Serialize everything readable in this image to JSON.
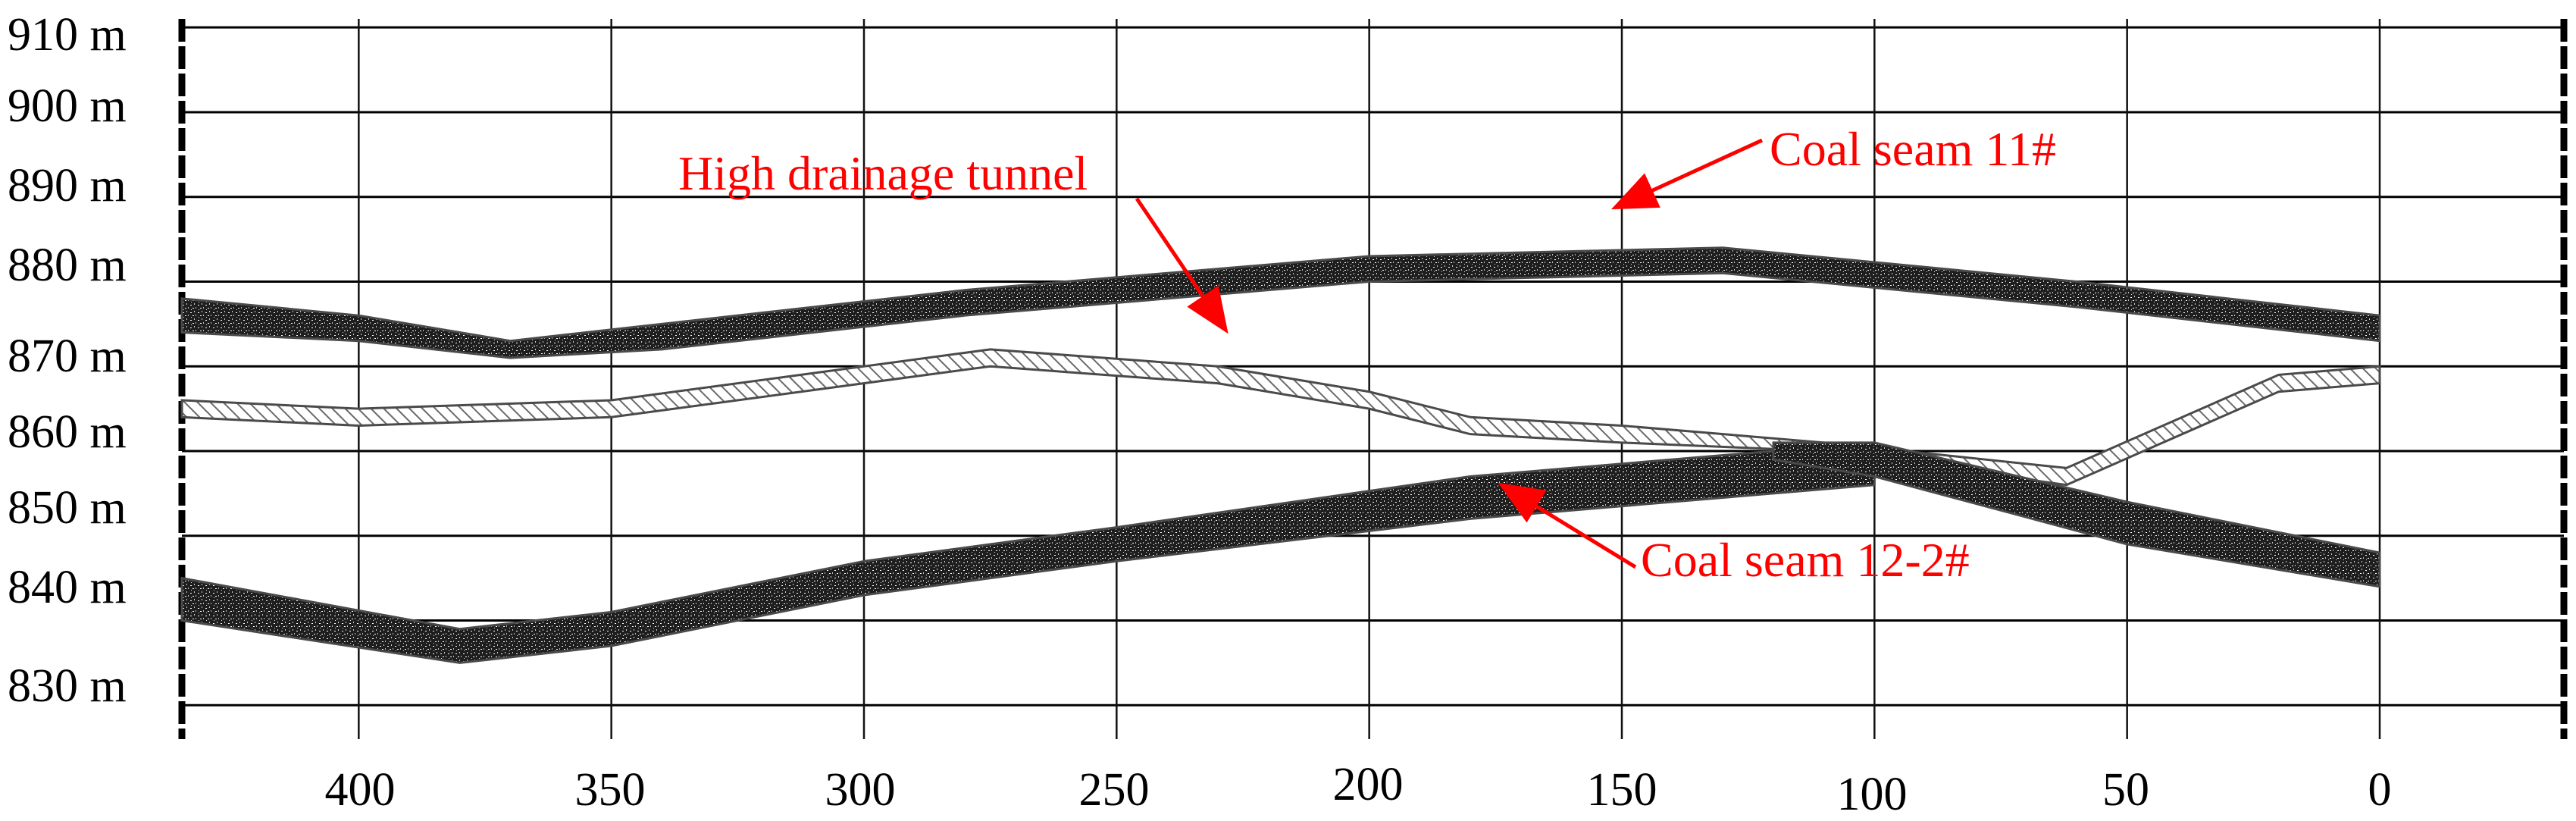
{
  "y_axis_labels": [
    "910 m",
    "900 m",
    "890 m",
    "880 m",
    "870 m",
    "860 m",
    "850 m",
    "840 m",
    "830 m"
  ],
  "x_axis_labels": [
    "400",
    "350",
    "300",
    "250",
    "200",
    "150",
    "100",
    "50",
    "0"
  ],
  "annotations": {
    "seam_11": "Coal seam 11#",
    "tunnel": "High drainage tunnel",
    "seam_12_2": "Coal seam 12-2#"
  },
  "colors": {
    "annotation": "#ff0000",
    "seam_fill": "#2a2a2a",
    "tunnel_fill": "#9a9a9a",
    "grid": "#000000"
  },
  "x_range": [
    435,
    0
  ],
  "y_range": [
    826,
    911
  ],
  "profiles": {
    "seam_11": {
      "top": [
        [
          435,
          878
        ],
        [
          400,
          876
        ],
        [
          370,
          873
        ],
        [
          340,
          875
        ],
        [
          280,
          879
        ],
        [
          200,
          883
        ],
        [
          130,
          884
        ],
        [
          60,
          880
        ],
        [
          0,
          876
        ]
      ],
      "bottom": [
        [
          435,
          874
        ],
        [
          400,
          873
        ],
        [
          370,
          871
        ],
        [
          340,
          872
        ],
        [
          280,
          876
        ],
        [
          200,
          880
        ],
        [
          130,
          881
        ],
        [
          60,
          877
        ],
        [
          0,
          873
        ]
      ]
    },
    "tunnel": {
      "top": [
        [
          435,
          866
        ],
        [
          400,
          865
        ],
        [
          350,
          866
        ],
        [
          275,
          872
        ],
        [
          230,
          870
        ],
        [
          200,
          867
        ],
        [
          180,
          864
        ],
        [
          150,
          863
        ],
        [
          110,
          861
        ],
        [
          62,
          858
        ],
        [
          20,
          869
        ],
        [
          0,
          870
        ]
      ],
      "bottom": [
        [
          435,
          864
        ],
        [
          400,
          863
        ],
        [
          350,
          864
        ],
        [
          275,
          870
        ],
        [
          230,
          868
        ],
        [
          200,
          865
        ],
        [
          180,
          862
        ],
        [
          150,
          861
        ],
        [
          110,
          860
        ],
        [
          62,
          856
        ],
        [
          20,
          867
        ],
        [
          0,
          868
        ]
      ]
    },
    "seam_12_2_lower": {
      "top": [
        [
          435,
          845
        ],
        [
          380,
          839
        ],
        [
          350,
          841
        ],
        [
          300,
          847
        ],
        [
          250,
          851
        ],
        [
          180,
          857
        ],
        [
          100,
          861
        ]
      ],
      "bottom": [
        [
          435,
          840
        ],
        [
          380,
          835
        ],
        [
          350,
          837
        ],
        [
          300,
          843
        ],
        [
          250,
          847
        ],
        [
          180,
          852
        ],
        [
          100,
          856
        ]
      ]
    },
    "seam_12_2_upper": {
      "top": [
        [
          120,
          861
        ],
        [
          100,
          861
        ],
        [
          50,
          854
        ],
        [
          0,
          848
        ]
      ],
      "bottom": [
        [
          120,
          859
        ],
        [
          100,
          857
        ],
        [
          50,
          849
        ],
        [
          0,
          844
        ]
      ]
    }
  }
}
